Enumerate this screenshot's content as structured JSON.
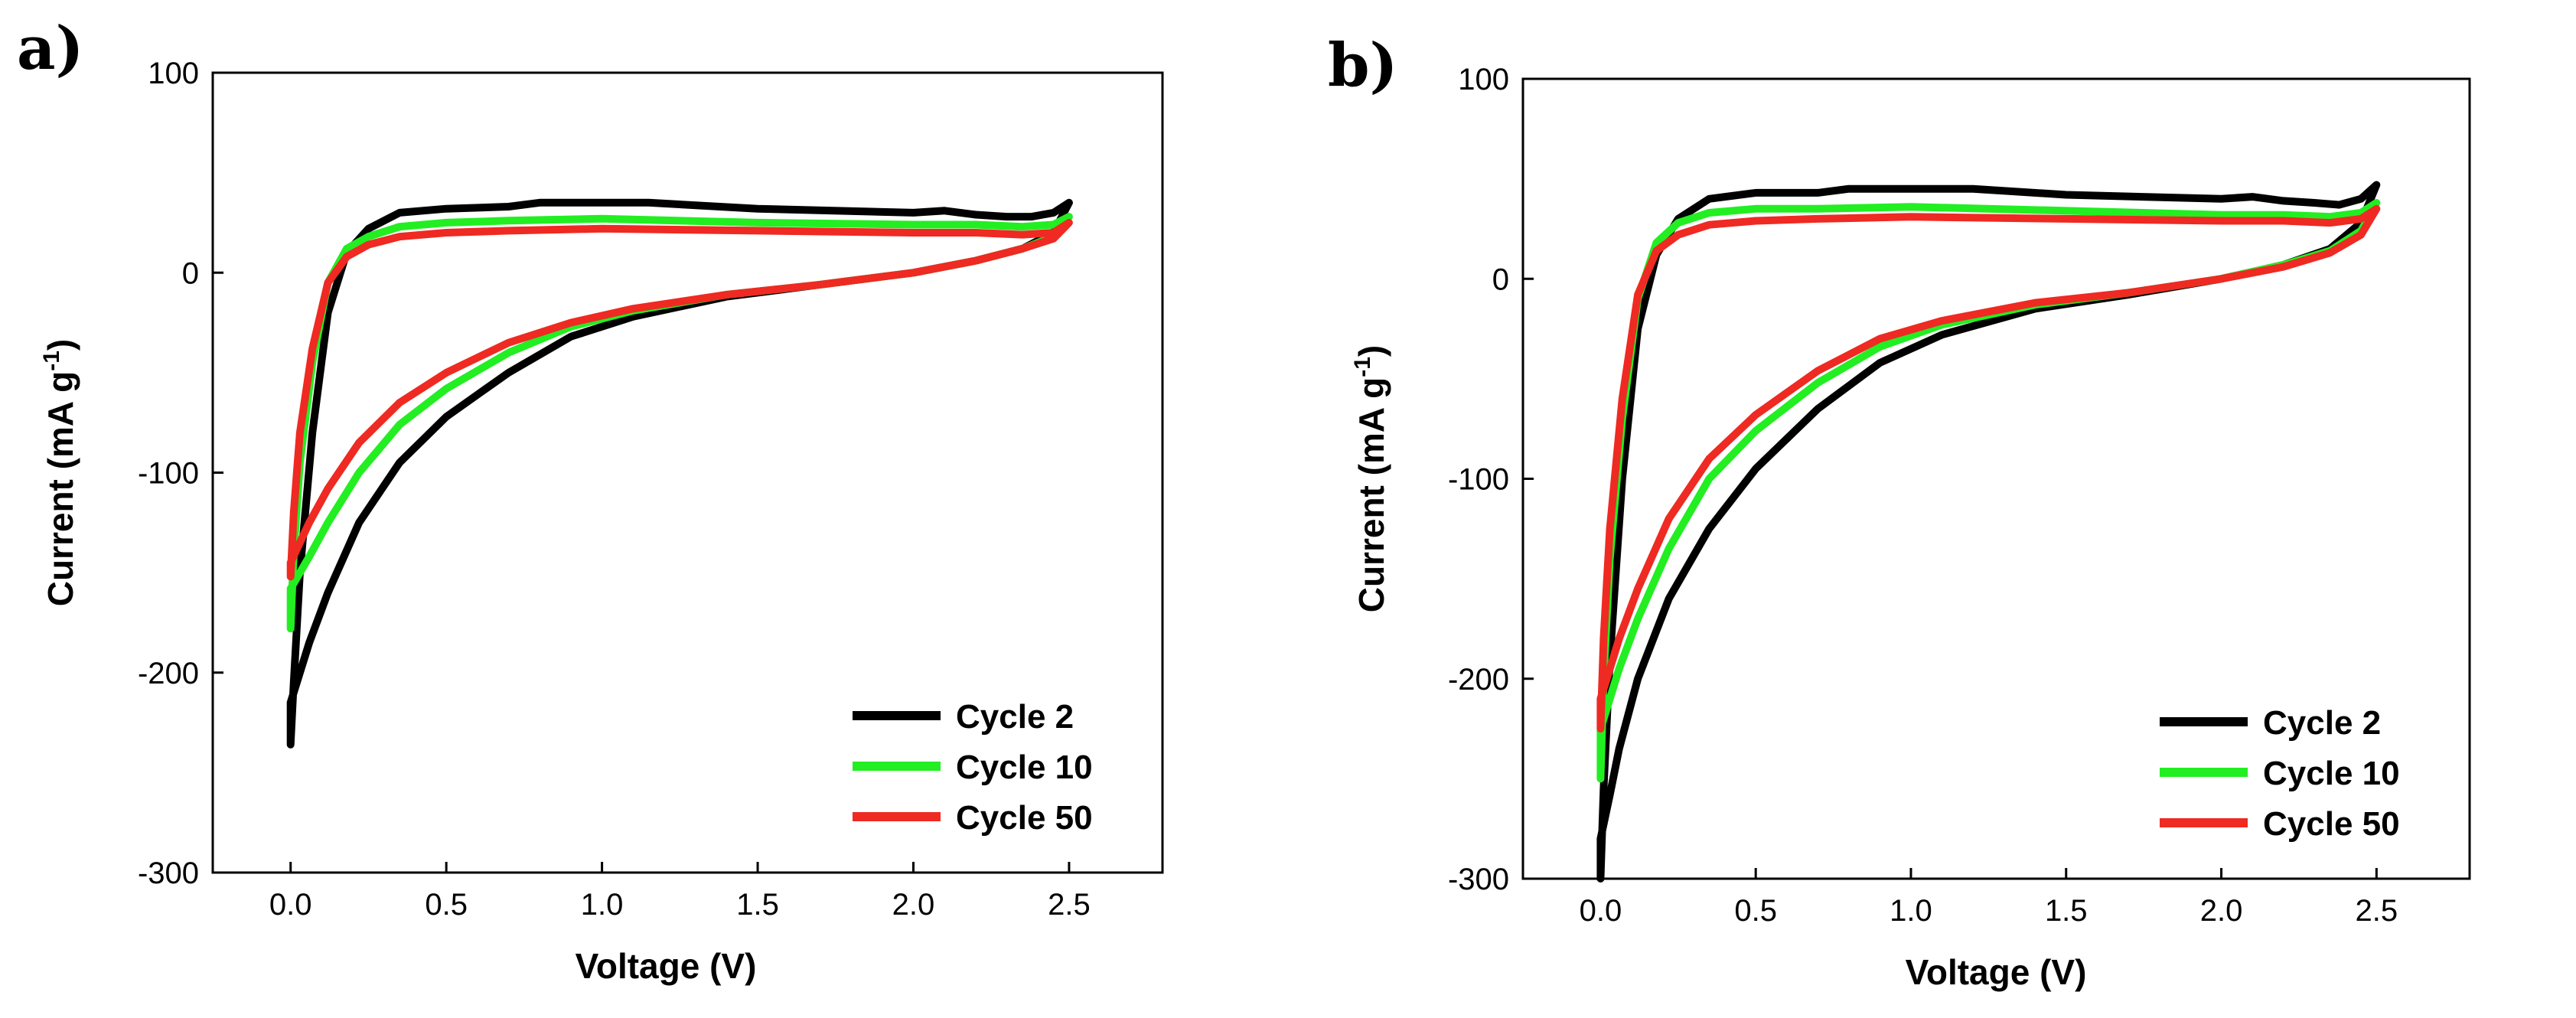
{
  "chart_data": [
    {
      "type": "line",
      "panel_label": "a)",
      "xlabel": "Voltage (V)",
      "ylabel": "Current (mA g",
      "ylabel_sup": "-1",
      "ylabel_close": ")",
      "xlim": [
        -0.25,
        2.8
      ],
      "ylim": [
        -300,
        100
      ],
      "xticks": [
        0.0,
        0.5,
        1.0,
        1.5,
        2.0,
        2.5
      ],
      "xtick_labels": [
        "0.0",
        "0.5",
        "1.0",
        "1.5",
        "2.0",
        "2.5"
      ],
      "yticks": [
        100,
        0,
        -100,
        -200,
        -300
      ],
      "ytick_labels": [
        "100",
        "0",
        "-100",
        "-200",
        "-300"
      ],
      "legend_position": "bottom-right",
      "series": [
        {
          "name": "Cycle 2",
          "color": "#000000",
          "x": [
            0.0,
            0.01,
            0.03,
            0.07,
            0.12,
            0.18,
            0.25,
            0.35,
            0.5,
            0.7,
            0.8,
            1.0,
            1.15,
            1.5,
            2.0,
            2.1,
            2.2,
            2.3,
            2.38,
            2.45,
            2.5,
            2.45,
            2.35,
            2.2,
            2.0,
            1.7,
            1.4,
            1.1,
            0.9,
            0.7,
            0.5,
            0.35,
            0.22,
            0.12,
            0.06,
            0.03,
            0.0,
            0.0
          ],
          "y": [
            -236,
            -205,
            -150,
            -80,
            -20,
            10,
            22,
            30,
            32,
            33,
            35,
            35,
            35,
            32,
            30,
            31,
            29,
            28,
            28,
            30,
            35,
            20,
            12,
            6,
            0,
            -6,
            -12,
            -22,
            -32,
            -50,
            -72,
            -95,
            -125,
            -160,
            -185,
            -200,
            -215,
            -236
          ]
        },
        {
          "name": "Cycle 10",
          "color": "#22ee22",
          "x": [
            0.0,
            0.01,
            0.03,
            0.07,
            0.12,
            0.18,
            0.25,
            0.35,
            0.5,
            0.7,
            1.0,
            1.5,
            2.0,
            2.2,
            2.35,
            2.45,
            2.5,
            2.45,
            2.35,
            2.2,
            2.0,
            1.7,
            1.4,
            1.1,
            0.9,
            0.7,
            0.5,
            0.35,
            0.22,
            0.12,
            0.06,
            0.03,
            0.0,
            0.0
          ],
          "y": [
            -178,
            -140,
            -95,
            -45,
            -5,
            12,
            18,
            23,
            25,
            26,
            27,
            25,
            24,
            24,
            23,
            24,
            28,
            18,
            12,
            6,
            0,
            -6,
            -11,
            -19,
            -27,
            -40,
            -58,
            -76,
            -100,
            -125,
            -142,
            -150,
            -158,
            -178
          ]
        },
        {
          "name": "Cycle 50",
          "color": "#ee2a22",
          "x": [
            0.0,
            0.01,
            0.03,
            0.07,
            0.12,
            0.18,
            0.25,
            0.35,
            0.5,
            0.7,
            1.0,
            1.5,
            2.0,
            2.2,
            2.35,
            2.45,
            2.5,
            2.45,
            2.35,
            2.2,
            2.0,
            1.7,
            1.4,
            1.1,
            0.9,
            0.7,
            0.5,
            0.35,
            0.22,
            0.12,
            0.06,
            0.03,
            0.0,
            0.0
          ],
          "y": [
            -152,
            -120,
            -80,
            -38,
            -5,
            8,
            14,
            18,
            20,
            21,
            22,
            21,
            20,
            20,
            19,
            20,
            25,
            17,
            12,
            6,
            0,
            -6,
            -11,
            -18,
            -25,
            -35,
            -50,
            -65,
            -85,
            -108,
            -125,
            -135,
            -145,
            -152
          ]
        }
      ]
    },
    {
      "type": "line",
      "panel_label": "b)",
      "xlabel": "Voltage (V)",
      "ylabel": "Current (mA g",
      "ylabel_sup": "-1",
      "ylabel_close": ")",
      "xlim": [
        -0.25,
        2.8
      ],
      "ylim": [
        -300,
        100
      ],
      "xticks": [
        0.0,
        0.5,
        1.0,
        1.5,
        2.0,
        2.5
      ],
      "xtick_labels": [
        "0.0",
        "0.5",
        "1.0",
        "1.5",
        "2.0",
        "2.5"
      ],
      "yticks": [
        100,
        0,
        -100,
        -200,
        -300
      ],
      "ytick_labels": [
        "100",
        "0",
        "-100",
        "-200",
        "-300"
      ],
      "legend_position": "bottom-right",
      "series": [
        {
          "name": "Cycle 2",
          "color": "#000000",
          "x": [
            0.0,
            0.01,
            0.03,
            0.07,
            0.12,
            0.18,
            0.25,
            0.35,
            0.5,
            0.7,
            0.8,
            1.0,
            1.2,
            1.5,
            2.0,
            2.1,
            2.2,
            2.3,
            2.38,
            2.45,
            2.5,
            2.45,
            2.35,
            2.2,
            2.0,
            1.7,
            1.4,
            1.1,
            0.9,
            0.7,
            0.5,
            0.35,
            0.22,
            0.12,
            0.06,
            0.03,
            0.0,
            0.0
          ],
          "y": [
            -300,
            -255,
            -190,
            -100,
            -25,
            12,
            30,
            40,
            43,
            43,
            45,
            45,
            45,
            42,
            40,
            41,
            39,
            38,
            37,
            40,
            47,
            28,
            15,
            7,
            0,
            -8,
            -15,
            -28,
            -42,
            -65,
            -95,
            -125,
            -160,
            -200,
            -235,
            -258,
            -280,
            -300
          ]
        },
        {
          "name": "Cycle 10",
          "color": "#22ee22",
          "x": [
            0.0,
            0.01,
            0.03,
            0.07,
            0.12,
            0.18,
            0.25,
            0.35,
            0.5,
            0.7,
            1.0,
            1.5,
            2.0,
            2.2,
            2.35,
            2.45,
            2.5,
            2.45,
            2.35,
            2.2,
            2.0,
            1.7,
            1.4,
            1.1,
            0.9,
            0.7,
            0.5,
            0.35,
            0.22,
            0.12,
            0.06,
            0.03,
            0.0,
            0.0
          ],
          "y": [
            -250,
            -200,
            -140,
            -70,
            -10,
            18,
            28,
            33,
            35,
            35,
            36,
            34,
            32,
            32,
            31,
            33,
            38,
            24,
            14,
            7,
            0,
            -7,
            -13,
            -23,
            -34,
            -52,
            -76,
            -100,
            -135,
            -170,
            -195,
            -210,
            -225,
            -250
          ]
        },
        {
          "name": "Cycle 50",
          "color": "#ee2a22",
          "x": [
            0.0,
            0.01,
            0.03,
            0.07,
            0.12,
            0.18,
            0.25,
            0.35,
            0.5,
            0.7,
            1.0,
            1.5,
            2.0,
            2.2,
            2.35,
            2.45,
            2.5,
            2.45,
            2.35,
            2.2,
            2.0,
            1.7,
            1.4,
            1.1,
            0.9,
            0.7,
            0.5,
            0.35,
            0.22,
            0.12,
            0.06,
            0.03,
            0.0,
            0.0
          ],
          "y": [
            -225,
            -180,
            -125,
            -60,
            -8,
            14,
            22,
            27,
            29,
            30,
            31,
            30,
            29,
            29,
            28,
            30,
            35,
            22,
            13,
            6,
            0,
            -7,
            -12,
            -21,
            -30,
            -46,
            -68,
            -90,
            -120,
            -155,
            -180,
            -195,
            -210,
            -225
          ]
        }
      ]
    }
  ]
}
